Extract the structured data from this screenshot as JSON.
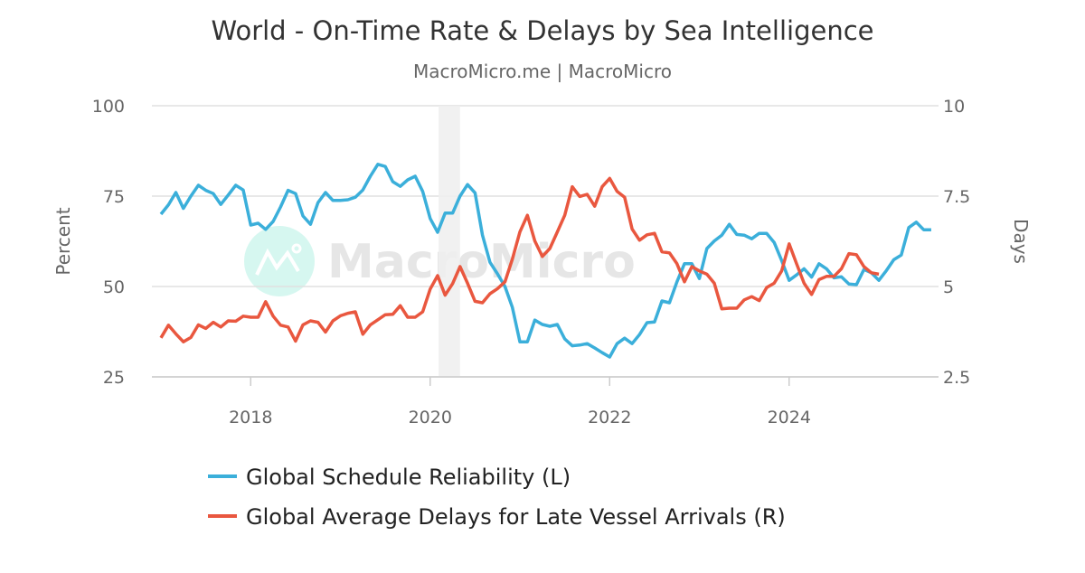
{
  "chart_data": {
    "type": "line",
    "title": "World - On-Time Rate & Delays by Sea Intelligence",
    "subtitle": "MacroMicro.me | MacroMicro",
    "watermark": "MacroMicro",
    "ylabel_left": "Percent",
    "ylabel_right": "Days",
    "ylim_left": [
      25,
      100
    ],
    "ylim_right": [
      2.5,
      10
    ],
    "yticks_left": [
      "100",
      "75",
      "50",
      "25"
    ],
    "yticks_right": [
      "10",
      "7.5",
      "5",
      "2.5"
    ],
    "xticks": [
      "2018",
      "2020",
      "2022",
      "2024"
    ],
    "grid": true,
    "legend_placement": "bottom",
    "shaded_period": [
      "2020-02",
      "2020-04"
    ],
    "series": [
      {
        "name": "Global Schedule Reliability (L)",
        "axis": "left",
        "color": "#3bafda",
        "dates": [
          "2017-01",
          "2017-02",
          "2017-03",
          "2017-04",
          "2017-05",
          "2017-06",
          "2017-07",
          "2017-08",
          "2017-09",
          "2017-10",
          "2017-11",
          "2017-12",
          "2018-01",
          "2018-02",
          "2018-03",
          "2018-04",
          "2018-05",
          "2018-06",
          "2018-07",
          "2018-08",
          "2018-09",
          "2018-10",
          "2018-11",
          "2018-12",
          "2019-01",
          "2019-02",
          "2019-03",
          "2019-04",
          "2019-05",
          "2019-06",
          "2019-07",
          "2019-08",
          "2019-09",
          "2019-10",
          "2019-11",
          "2019-12",
          "2020-01",
          "2020-02",
          "2020-03",
          "2020-04",
          "2020-05",
          "2020-06",
          "2020-07",
          "2020-08",
          "2020-09",
          "2020-10",
          "2020-11",
          "2020-12",
          "2021-01",
          "2021-02",
          "2021-03",
          "2021-04",
          "2021-05",
          "2021-06",
          "2021-07",
          "2021-08",
          "2021-09",
          "2021-10",
          "2021-11",
          "2021-12",
          "2022-01",
          "2022-02",
          "2022-03",
          "2022-04",
          "2022-05",
          "2022-06",
          "2022-07",
          "2022-08",
          "2022-09",
          "2022-10",
          "2022-11",
          "2022-12",
          "2023-01",
          "2023-02",
          "2023-03",
          "2023-04",
          "2023-05",
          "2023-06",
          "2023-07",
          "2023-08",
          "2023-09",
          "2023-10",
          "2023-11",
          "2023-12",
          "2024-01",
          "2024-02",
          "2024-03",
          "2024-04",
          "2024-05",
          "2024-06",
          "2024-07",
          "2024-08",
          "2024-09",
          "2024-10",
          "2024-11",
          "2024-12",
          "2025-01",
          "2025-02",
          "2025-03",
          "2025-04",
          "2025-05",
          "2025-06",
          "2025-07",
          "2025-08"
        ],
        "values": [
          70,
          72.6,
          76,
          71.6,
          75,
          78,
          76.6,
          75.7,
          72.7,
          75.3,
          78,
          76.7,
          67,
          67.5,
          65.8,
          68,
          72,
          76.6,
          75.7,
          69.5,
          67.2,
          73.2,
          76,
          73.8,
          73.8,
          74,
          74.7,
          76.7,
          80.5,
          83.8,
          83.2,
          79,
          77.7,
          79.5,
          80.5,
          76.3,
          68.8,
          65,
          70.3,
          70.3,
          75,
          78.2,
          75.9,
          64.2,
          56.7,
          53.5,
          50,
          44.2,
          34.7,
          34.7,
          40.7,
          39.5,
          39,
          39.5,
          35.5,
          33.6,
          33.8,
          34.2,
          33,
          31.7,
          30.5,
          34.2,
          35.7,
          34.2,
          36.7,
          40,
          40.2,
          46,
          45.5,
          51.3,
          56.3,
          56.3,
          52.2,
          60.5,
          62.6,
          64.2,
          67.2,
          64.4,
          64.2,
          63.2,
          64.7,
          64.7,
          62.2,
          57.2,
          51.7,
          53.2,
          54.9,
          52.6,
          56.3,
          54.9,
          52.4,
          52.7,
          50.7,
          50.5,
          54.7,
          53.8,
          51.7,
          54.4,
          57.4,
          58.7,
          66.3,
          67.8,
          65.7,
          65.7
        ]
      },
      {
        "name": "Global Average Delays for Late Vessel Arrivals (R)",
        "axis": "right",
        "color": "#e9573f",
        "dates": [
          "2017-01",
          "2017-02",
          "2017-03",
          "2017-04",
          "2017-05",
          "2017-06",
          "2017-07",
          "2017-08",
          "2017-09",
          "2017-10",
          "2017-11",
          "2017-12",
          "2018-01",
          "2018-02",
          "2018-03",
          "2018-04",
          "2018-05",
          "2018-06",
          "2018-07",
          "2018-08",
          "2018-09",
          "2018-10",
          "2018-11",
          "2018-12",
          "2019-01",
          "2019-02",
          "2019-03",
          "2019-04",
          "2019-05",
          "2019-06",
          "2019-07",
          "2019-08",
          "2019-09",
          "2019-10",
          "2019-11",
          "2019-12",
          "2020-01",
          "2020-02",
          "2020-03",
          "2020-04",
          "2020-05",
          "2020-06",
          "2020-07",
          "2020-08",
          "2020-09",
          "2020-10",
          "2020-11",
          "2020-12",
          "2021-01",
          "2021-02",
          "2021-03",
          "2021-04",
          "2021-05",
          "2021-06",
          "2021-07",
          "2021-08",
          "2021-09",
          "2021-10",
          "2021-11",
          "2021-12",
          "2022-01",
          "2022-02",
          "2022-03",
          "2022-04",
          "2022-05",
          "2022-06",
          "2022-07",
          "2022-08",
          "2022-09",
          "2022-10",
          "2022-11",
          "2022-12",
          "2023-01",
          "2023-02",
          "2023-03",
          "2023-04",
          "2023-05",
          "2023-06",
          "2023-07",
          "2023-08",
          "2023-09",
          "2023-10",
          "2023-11",
          "2023-12",
          "2024-01",
          "2024-02",
          "2024-03",
          "2024-04",
          "2024-05",
          "2024-06",
          "2024-07",
          "2024-08",
          "2024-09",
          "2024-10",
          "2024-11",
          "2024-12",
          "2025-01"
        ],
        "values": [
          3.58,
          3.93,
          3.69,
          3.47,
          3.59,
          3.94,
          3.84,
          4.01,
          3.88,
          4.05,
          4.04,
          4.18,
          4.15,
          4.15,
          4.58,
          4.18,
          3.93,
          3.88,
          3.49,
          3.94,
          4.05,
          4.01,
          3.74,
          4.05,
          4.19,
          4.26,
          4.3,
          3.68,
          3.94,
          4.08,
          4.22,
          4.23,
          4.47,
          4.15,
          4.15,
          4.3,
          4.93,
          5.3,
          4.76,
          5.08,
          5.55,
          5.09,
          4.59,
          4.55,
          4.8,
          4.94,
          5.13,
          5.76,
          6.51,
          6.97,
          6.26,
          5.83,
          6.05,
          6.51,
          6.97,
          7.76,
          7.49,
          7.55,
          7.22,
          7.76,
          7.99,
          7.63,
          7.47,
          6.59,
          6.28,
          6.43,
          6.47,
          5.96,
          5.93,
          5.63,
          5.13,
          5.55,
          5.43,
          5.34,
          5.09,
          4.38,
          4.4,
          4.4,
          4.63,
          4.72,
          4.61,
          4.97,
          5.09,
          5.43,
          6.18,
          5.63,
          5.09,
          4.78,
          5.19,
          5.28,
          5.28,
          5.49,
          5.91,
          5.88,
          5.55,
          5.38,
          5.34
        ]
      }
    ]
  }
}
